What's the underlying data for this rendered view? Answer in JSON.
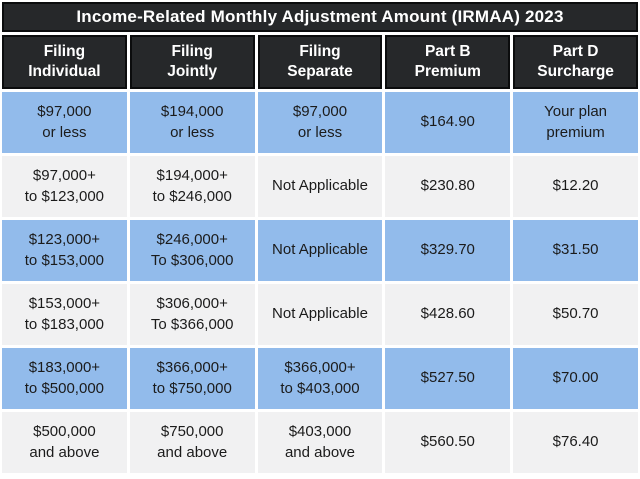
{
  "title": "Income-Related Monthly Adjustment Amount (IRMAA) 2023",
  "colors": {
    "header_bg": "#26282a",
    "header_border": "#0b0c0d",
    "header_text": "#ffffff",
    "row_blue": "#92bbeb",
    "row_light": "#f1f1f2",
    "cell_text": "#1b1b1b",
    "divider": "#ffffff"
  },
  "chart_data": {
    "type": "table",
    "title": "Income-Related Monthly Adjustment Amount (IRMAA) 2023",
    "columns": [
      "Filing\nIndividual",
      "Filing\nJointly",
      "Filing\nSeparate",
      "Part B\nPremium",
      "Part D\nSurcharge"
    ],
    "rows": [
      [
        "$97,000\nor less",
        "$194,000\nor less",
        "$97,000\nor less",
        "$164.90",
        "Your plan\npremium"
      ],
      [
        "$97,000+\nto $123,000",
        "$194,000+\nto $246,000",
        "Not Applicable",
        "$230.80",
        "$12.20"
      ],
      [
        "$123,000+\nto $153,000",
        "$246,000+\nTo $306,000",
        "Not Applicable",
        "$329.70",
        "$31.50"
      ],
      [
        "$153,000+\nto $183,000",
        "$306,000+\nTo $366,000",
        "Not Applicable",
        "$428.60",
        "$50.70"
      ],
      [
        "$183,000+\nto $500,000",
        "$366,000+\nto $750,000",
        "$366,000+\nto $403,000",
        "$527.50",
        "$70.00"
      ],
      [
        "$500,000\nand above",
        "$750,000\nand above",
        "$403,000\nand above",
        "$560.50",
        "$76.40"
      ]
    ]
  }
}
